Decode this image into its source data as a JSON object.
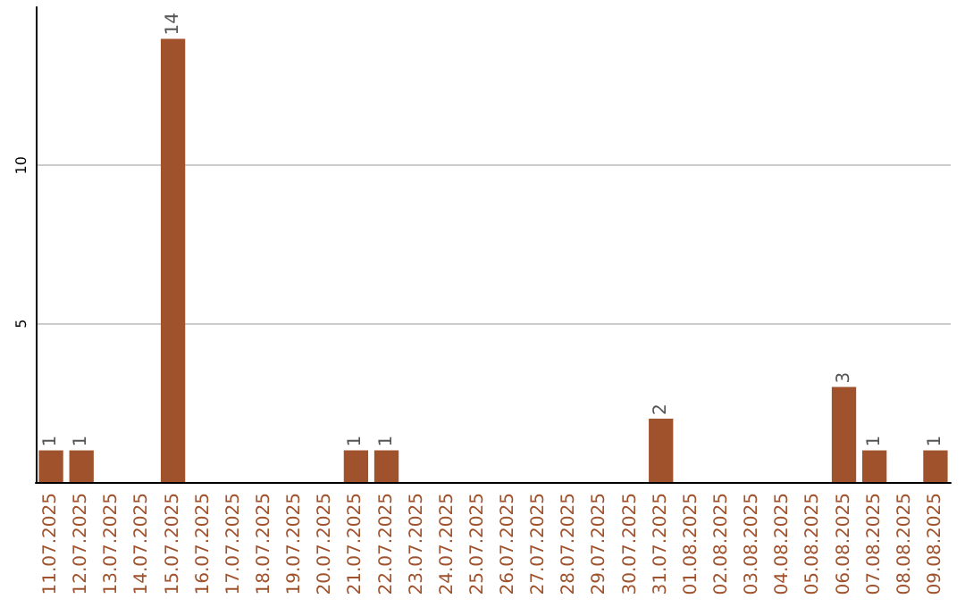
{
  "chart_data": {
    "type": "bar",
    "categories": [
      "11.07.2025",
      "12.07.2025",
      "13.07.2025",
      "14.07.2025",
      "15.07.2025",
      "16.07.2025",
      "17.07.2025",
      "18.07.2025",
      "19.07.2025",
      "20.07.2025",
      "21.07.2025",
      "22.07.2025",
      "23.07.2025",
      "24.07.2025",
      "25.07.2025",
      "26.07.2025",
      "27.07.2025",
      "28.07.2025",
      "29.07.2025",
      "30.07.2025",
      "31.07.2025",
      "01.08.2025",
      "02.08.2025",
      "03.08.2025",
      "04.08.2025",
      "05.08.2025",
      "06.08.2025",
      "07.08.2025",
      "08.08.2025",
      "09.08.2025"
    ],
    "values": [
      1,
      1,
      0,
      0,
      14,
      0,
      0,
      0,
      0,
      0,
      1,
      1,
      0,
      0,
      0,
      0,
      0,
      0,
      0,
      0,
      2,
      0,
      0,
      0,
      0,
      0,
      3,
      1,
      0,
      1
    ],
    "value_labels": [
      "1",
      "1",
      null,
      null,
      "14",
      null,
      null,
      null,
      null,
      null,
      "1",
      "1",
      null,
      null,
      null,
      null,
      null,
      null,
      null,
      null,
      "2",
      null,
      null,
      null,
      null,
      null,
      "3",
      "1",
      null,
      "1"
    ],
    "color": "#a0522d",
    "ylim": [
      0,
      15
    ],
    "yticks": [
      5,
      10
    ],
    "grid": "y"
  }
}
